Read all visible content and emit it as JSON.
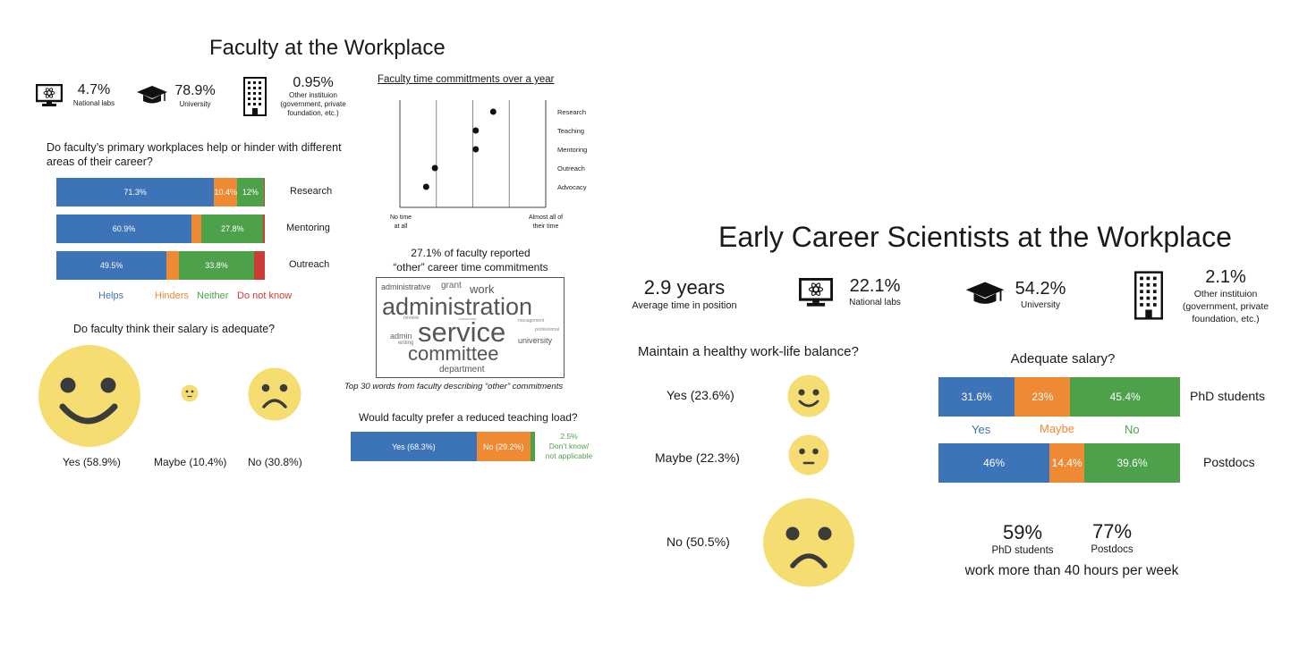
{
  "colors": {
    "helps": "#3d73b7",
    "hinders": "#ef8a34",
    "neither": "#4ea14b",
    "dont_know": "#cc3c36",
    "face": "#f6dd72",
    "face_feature": "#3b3b3b"
  },
  "faculty": {
    "title": "Faculty at the Workplace",
    "stats": [
      {
        "icon": "monitor-atom-icon",
        "value": "4.7%",
        "label": "National labs"
      },
      {
        "icon": "graduation-cap-icon",
        "value": "78.9%",
        "label": "University"
      },
      {
        "icon": "building-icon",
        "value": "0.95%",
        "label_lines": [
          "Other instituion",
          "(government, private",
          "foundation, etc.)"
        ]
      }
    ],
    "help_question_lines": [
      "Do faculty’s primary workplaces help or hinder with different",
      "areas of their career?"
    ],
    "legend": [
      "Helps",
      "Hinders",
      "Neither",
      "Do not know"
    ],
    "salary_question": "Do faculty think their salary is adequate?",
    "salary_labels": [
      "Yes (58.9%)",
      "Maybe (10.4%)",
      "No (30.8%)"
    ],
    "time_title": "Faculty time committments over a year",
    "time_axis_left": [
      "No time",
      "at all"
    ],
    "time_axis_right": [
      "Almost all of",
      "their time"
    ],
    "other_title_lines": [
      "27.1% of faculty reported",
      "“other” career time commitments"
    ],
    "wordcloud": [
      "administrative",
      "grant",
      "work",
      "administration",
      "review",
      "bureaucracy",
      "management",
      "professional",
      "admin",
      "writing",
      "service",
      "university",
      "committee",
      "department"
    ],
    "wordcloud_caption": "Top 30 words from faculty describing “other” commitments",
    "teaching_question": "Would faculty prefer a reduced teaching load?",
    "teaching_other_lines": [
      "2.5%",
      "Don’t know/",
      "not applicable"
    ]
  },
  "early": {
    "title": "Early Career Scientists at the Workplace",
    "years_value": "2.9 years",
    "years_label": "Average time in position",
    "stats": [
      {
        "icon": "monitor-atom-icon",
        "value": "22.1%",
        "label": "National labs"
      },
      {
        "icon": "graduation-cap-icon",
        "value": "54.2%",
        "label": "University"
      },
      {
        "icon": "building-icon",
        "value": "2.1%",
        "label_lines": [
          "Other instituion",
          "(government, private",
          "foundation, etc.)"
        ]
      }
    ],
    "balance_question": "Maintain a healthy work-life balance?",
    "balance_labels": [
      "Yes (23.6%)",
      "Maybe (22.3%)",
      "No (50.5%)"
    ],
    "salary_question": "Adequate salary?",
    "salary_legend": [
      "Yes",
      "Maybe",
      "No"
    ],
    "hours": [
      {
        "value": "59%",
        "label": "PhD students"
      },
      {
        "value": "77%",
        "label": "Postdocs"
      }
    ],
    "hours_caption": "work more than 40 hours per week"
  },
  "chart_data": [
    {
      "type": "bar",
      "orientation": "horizontal-stacked",
      "categories": [
        "Research",
        "Mentoring",
        "Outreach"
      ],
      "series": [
        {
          "name": "Helps",
          "values": [
            71.3,
            60.9,
            49.5
          ]
        },
        {
          "name": "Hinders",
          "values": [
            10.4,
            4.5,
            5.5
          ]
        },
        {
          "name": "Neither",
          "values": [
            12,
            27.8,
            33.8
          ]
        },
        {
          "name": "Do not know",
          "values": [
            0.5,
            0.7,
            4.8
          ]
        }
      ],
      "labels": [
        [
          "71.3%",
          "10.4%",
          "12%",
          ""
        ],
        [
          "60.9%",
          "",
          "27.8%",
          ""
        ],
        [
          "49.5%",
          "",
          "33.8%",
          ""
        ]
      ]
    },
    {
      "type": "scatter",
      "title": "Faculty time committments over a year",
      "categories": [
        "Research",
        "Teaching",
        "Mentoring",
        "Outreach",
        "Advocacy"
      ],
      "values": [
        0.64,
        0.52,
        0.52,
        0.24,
        0.18
      ],
      "xlim": [
        0,
        1
      ]
    },
    {
      "type": "bar",
      "orientation": "horizontal-stacked",
      "title": "Would faculty prefer a reduced teaching load?",
      "series": [
        {
          "name": "Yes",
          "value": 68.3,
          "label": "Yes (68.3%)"
        },
        {
          "name": "No",
          "value": 29.2,
          "label": "No (29.2%)"
        },
        {
          "name": "Don’t know/not applicable",
          "value": 2.5,
          "label": ""
        }
      ]
    },
    {
      "type": "bar",
      "orientation": "horizontal-stacked",
      "title": "Adequate salary?",
      "categories": [
        "PhD students",
        "Postdocs"
      ],
      "series": [
        {
          "name": "Yes",
          "values": [
            31.6,
            46
          ]
        },
        {
          "name": "Maybe",
          "values": [
            23,
            14.4
          ]
        },
        {
          "name": "No",
          "values": [
            45.4,
            39.6
          ]
        }
      ],
      "labels": [
        [
          "31.6%",
          "23%",
          "45.4%"
        ],
        [
          "46%",
          "14.4%",
          "39.6%"
        ]
      ]
    },
    {
      "type": "pie",
      "note": "proportional face sizes",
      "title": "Do faculty think their salary is adequate?",
      "categories": [
        "Yes",
        "Maybe",
        "No"
      ],
      "values": [
        58.9,
        10.4,
        30.8
      ]
    },
    {
      "type": "pie",
      "note": "proportional face sizes",
      "title": "Maintain a healthy work-life balance?",
      "categories": [
        "Yes",
        "Maybe",
        "No"
      ],
      "values": [
        23.6,
        22.3,
        50.5
      ]
    }
  ]
}
